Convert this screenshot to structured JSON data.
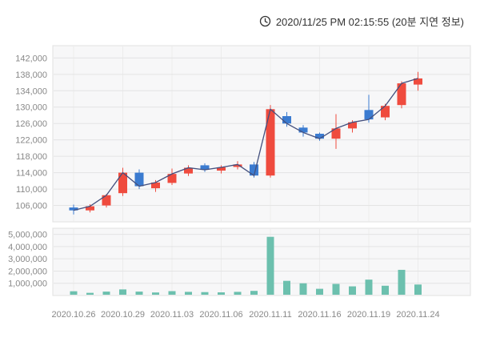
{
  "header": {
    "timestamp": "2020/11/25 PM 02:15:55 (20분 지연 정보)",
    "clock_icon": "clock-icon"
  },
  "colors": {
    "up": "#ef4b3e",
    "down": "#3b7bd0",
    "line": "#44507e",
    "volume": "#6cc0ae",
    "grid": "#e4e4e4",
    "grid_v": "#ececec",
    "panel_bg": "#f7f7f8",
    "panel_border": "#e0e0e0",
    "axis_text": "#888888",
    "header_text": "#333333",
    "page_bg": "#ffffff"
  },
  "chart_data": {
    "type": "candlestick",
    "title": "",
    "legend": "none",
    "grid": "on",
    "overlay_line": "close",
    "label_every": 3,
    "x_labels": [
      "2020.10.26",
      "2020.10.29",
      "2020.11.03",
      "2020.11.06",
      "2020.11.11",
      "2020.11.16",
      "2020.11.19",
      "2020.11.24"
    ],
    "price_axis": {
      "min": 102000,
      "max": 145000,
      "ticks": [
        142000,
        138000,
        134000,
        130000,
        126000,
        122000,
        118000,
        114000,
        110000,
        106000
      ]
    },
    "volume_axis": {
      "min": 0,
      "max": 5500000,
      "ticks": [
        5000000,
        4000000,
        3000000,
        2000000,
        1000000
      ]
    },
    "candles": [
      {
        "date": "2020.10.26",
        "open": 105500,
        "high": 106200,
        "low": 103800,
        "close": 104800,
        "volume": 350000
      },
      {
        "date": "2020.10.27",
        "open": 104800,
        "high": 106300,
        "low": 104300,
        "close": 105800,
        "volume": 220000
      },
      {
        "date": "2020.10.28",
        "open": 106000,
        "high": 108800,
        "low": 105500,
        "close": 108500,
        "volume": 320000
      },
      {
        "date": "2020.10.29",
        "open": 109000,
        "high": 115200,
        "low": 108300,
        "close": 114000,
        "volume": 500000
      },
      {
        "date": "2020.10.30",
        "open": 114000,
        "high": 114800,
        "low": 110000,
        "close": 110700,
        "volume": 320000
      },
      {
        "date": "2020.11.02",
        "open": 110200,
        "high": 112200,
        "low": 109300,
        "close": 111600,
        "volume": 250000
      },
      {
        "date": "2020.11.03",
        "open": 111500,
        "high": 115000,
        "low": 111000,
        "close": 113700,
        "volume": 360000
      },
      {
        "date": "2020.11.04",
        "open": 113800,
        "high": 115800,
        "low": 113200,
        "close": 115200,
        "volume": 300000
      },
      {
        "date": "2020.11.05",
        "open": 115800,
        "high": 116300,
        "low": 114200,
        "close": 114700,
        "volume": 280000
      },
      {
        "date": "2020.11.06",
        "open": 114500,
        "high": 115800,
        "low": 113800,
        "close": 115300,
        "volume": 260000
      },
      {
        "date": "2020.11.09",
        "open": 115400,
        "high": 116800,
        "low": 114800,
        "close": 116000,
        "volume": 300000
      },
      {
        "date": "2020.11.10",
        "open": 116000,
        "high": 116600,
        "low": 112800,
        "close": 113300,
        "volume": 380000
      },
      {
        "date": "2020.11.11",
        "open": 113300,
        "high": 130500,
        "low": 112800,
        "close": 129500,
        "volume": 4800000
      },
      {
        "date": "2020.11.12",
        "open": 127800,
        "high": 128800,
        "low": 125200,
        "close": 126000,
        "volume": 1200000
      },
      {
        "date": "2020.11.13",
        "open": 125000,
        "high": 125600,
        "low": 122800,
        "close": 123800,
        "volume": 1000000
      },
      {
        "date": "2020.11.16",
        "open": 123500,
        "high": 123800,
        "low": 121800,
        "close": 122300,
        "volume": 550000
      },
      {
        "date": "2020.11.17",
        "open": 122300,
        "high": 128300,
        "low": 119800,
        "close": 124800,
        "volume": 950000
      },
      {
        "date": "2020.11.18",
        "open": 124800,
        "high": 126800,
        "low": 123800,
        "close": 126300,
        "volume": 750000
      },
      {
        "date": "2020.11.19",
        "open": 129300,
        "high": 133000,
        "low": 126200,
        "close": 127000,
        "volume": 1300000
      },
      {
        "date": "2020.11.20",
        "open": 127500,
        "high": 130800,
        "low": 126800,
        "close": 130300,
        "volume": 800000
      },
      {
        "date": "2020.11.23",
        "open": 130500,
        "high": 136300,
        "low": 129700,
        "close": 135800,
        "volume": 2100000
      },
      {
        "date": "2020.11.24",
        "open": 135500,
        "high": 138600,
        "low": 134000,
        "close": 137000,
        "volume": 900000
      }
    ]
  }
}
